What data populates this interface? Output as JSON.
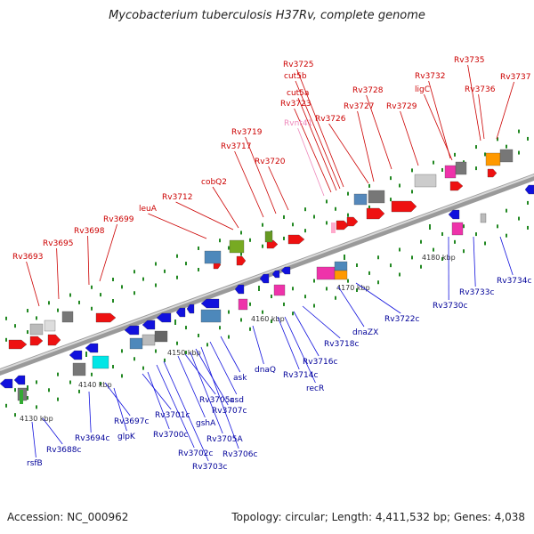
{
  "title": "Mycobacterium tuberculosis H37Rv, complete genome",
  "footer": {
    "accession": "Accession: NC_000962",
    "summary": "Topology: circular; Length: 4,411,532 bp; Genes: 4,038"
  },
  "colors": {
    "forward_gene": "#ee1111",
    "reverse_gene": "#1111dd",
    "forward_label": "#cc0000",
    "reverse_label": "#000099",
    "rna_label": "#ee88bb",
    "axis": "#888888",
    "scale_tick": "#228822"
  },
  "scale_labels": [
    "4130 kbp",
    "4140 kbp",
    "4150 kbp",
    "4160 kbp",
    "4170 kbp",
    "4180 kbp"
  ],
  "forward_labels": [
    "Rv3693",
    "Rv3695",
    "Rv3698",
    "Rv3699",
    "leuA",
    "Rv3712",
    "cobQ2",
    "Rv3717",
    "Rv3719",
    "Rv3720",
    "Rvnt41",
    "Rv3723",
    "cut5a",
    "cut5b",
    "Rv3725",
    "Rv3726",
    "Rv3727",
    "Rv3728",
    "Rv3729",
    "Rv3732",
    "ligC",
    "Rv3735",
    "Rv3736",
    "Rv3737"
  ],
  "reverse_labels": [
    "rsfB",
    "Rv3688c",
    "Rv3694c",
    "Rv3697c",
    "glpK",
    "Rv3701c",
    "Rv3700c",
    "Rv3702c",
    "Rv3703c",
    "gshA",
    "Rv3705c",
    "Rv3705A",
    "Rv3707c",
    "Rv3706c",
    "asd",
    "ask",
    "dnaQ",
    "Rv3714c",
    "recR",
    "Rv3716c",
    "Rv3718c",
    "dnaZX",
    "Rv3722c",
    "Rv3730c",
    "Rv3733c",
    "Rv3734c"
  ]
}
